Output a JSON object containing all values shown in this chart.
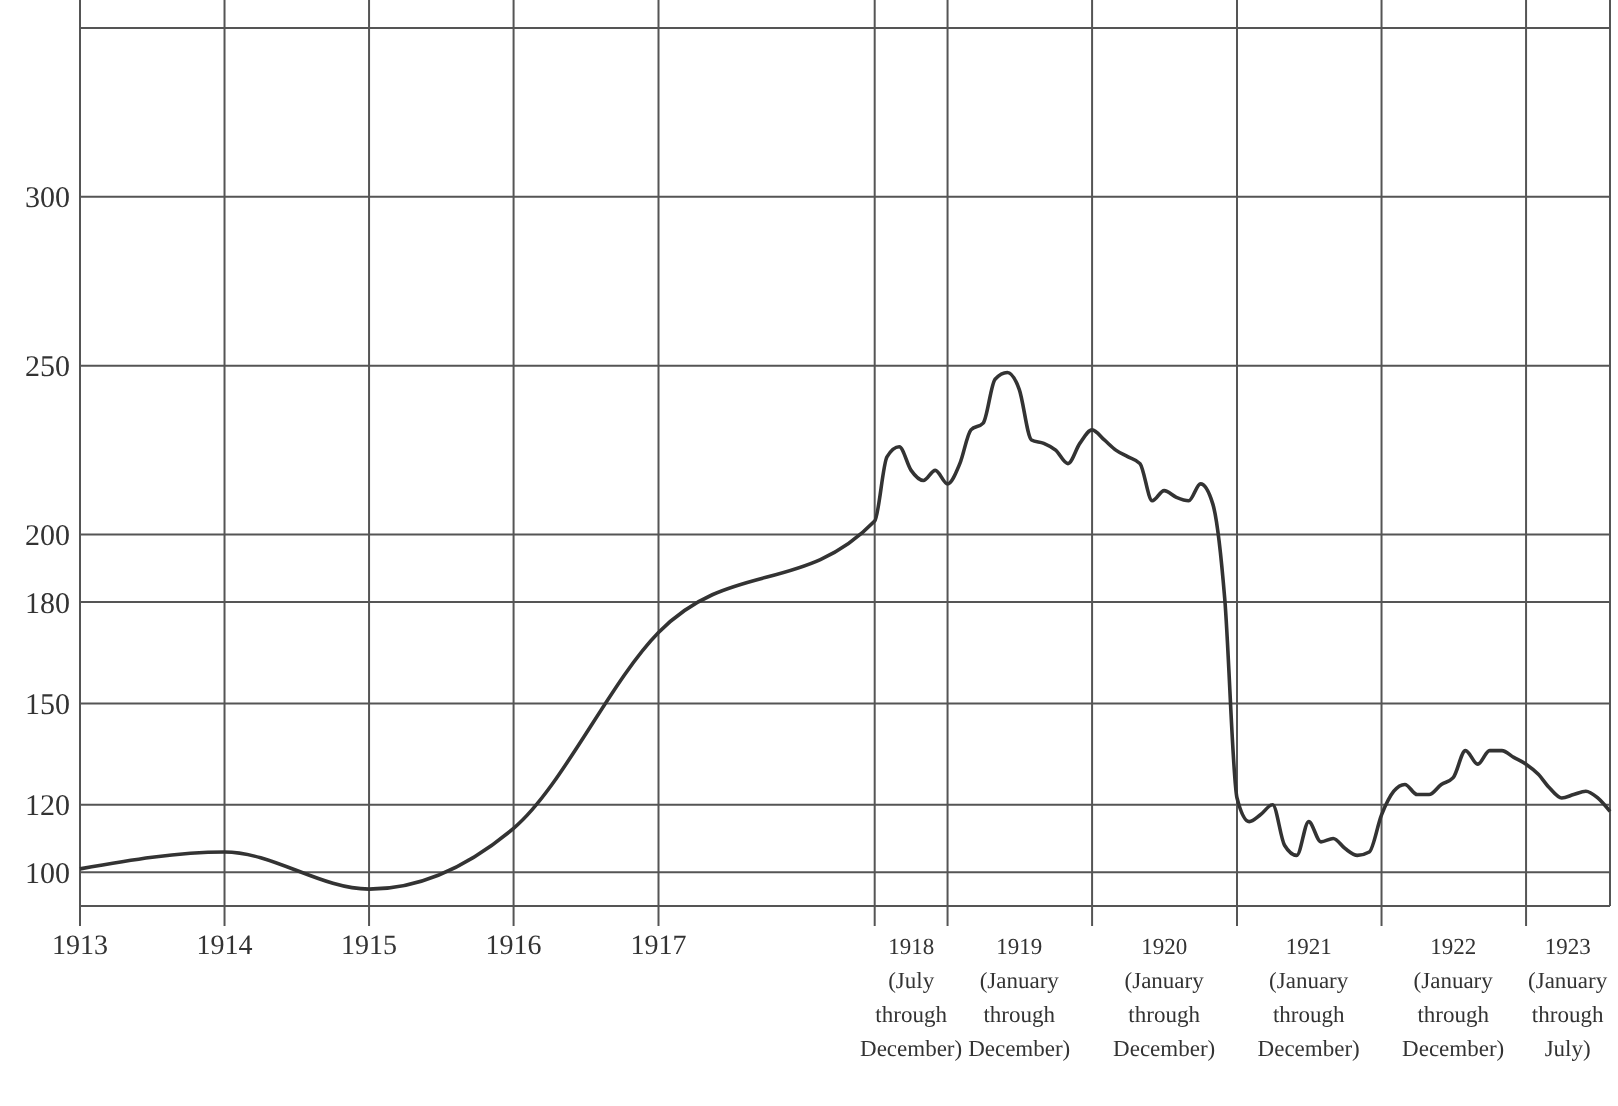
{
  "chart_data": {
    "type": "line",
    "x": [
      "1913",
      "1914",
      "1915",
      "1916",
      "1917",
      "1918-07",
      "1918-08",
      "1918-09",
      "1918-10",
      "1918-11",
      "1918-12",
      "1919-01",
      "1919-02",
      "1919-03",
      "1919-04",
      "1919-05",
      "1919-06",
      "1919-07",
      "1919-08",
      "1919-09",
      "1919-10",
      "1919-11",
      "1919-12",
      "1920-01",
      "1920-02",
      "1920-03",
      "1920-04",
      "1920-05",
      "1920-06",
      "1920-07",
      "1920-08",
      "1920-09",
      "1920-10",
      "1920-11",
      "1920-12",
      "1921-01",
      "1921-02",
      "1921-03",
      "1921-04",
      "1921-05",
      "1921-06",
      "1921-07",
      "1921-08",
      "1921-09",
      "1921-10",
      "1921-11",
      "1921-12",
      "1922-01",
      "1922-02",
      "1922-03",
      "1922-04",
      "1922-05",
      "1922-06",
      "1922-07",
      "1922-08",
      "1922-09",
      "1922-10",
      "1922-11",
      "1922-12",
      "1923-01",
      "1923-02",
      "1923-03",
      "1923-04",
      "1923-05",
      "1923-06",
      "1923-07",
      "1923-08"
    ],
    "series": [
      {
        "color": "#333333",
        "values": [
          101,
          106,
          95,
          113,
          171,
          204,
          223,
          226,
          219,
          216,
          219,
          215,
          221,
          231,
          233,
          246,
          248,
          243,
          228,
          227,
          225,
          221,
          227,
          231,
          228,
          225,
          223,
          221,
          210,
          213,
          211,
          210,
          215,
          209,
          181,
          122,
          115,
          117,
          120,
          108,
          105,
          115,
          109,
          110,
          107,
          105,
          106,
          117,
          124,
          126,
          123,
          123,
          126,
          128,
          136,
          132,
          136,
          136,
          134,
          132,
          129,
          125,
          122,
          123,
          124,
          122,
          118
        ]
      }
    ],
    "xlim": [
      "1913",
      "1923-08"
    ],
    "xticks": [
      {
        "value": "1913",
        "label": "1913"
      },
      {
        "value": "1914",
        "label": "1914"
      },
      {
        "value": "1915",
        "label": "1915"
      },
      {
        "value": "1916",
        "label": "1916"
      },
      {
        "value": "1917",
        "label": "1917"
      },
      {
        "value": "1918-07",
        "label": null
      },
      {
        "value": "1919",
        "label": null
      },
      {
        "value": "1920",
        "label": null
      },
      {
        "value": "1921",
        "label": null
      },
      {
        "value": "1922",
        "label": null
      },
      {
        "value": "1923",
        "label": null
      },
      {
        "value": "1918-10",
        "label": "1918\n(July\nthrough\nDecember)"
      },
      {
        "value": "1919-07",
        "label": "1919\n(January\nthrough\nDecember)"
      },
      {
        "value": "1920-07",
        "label": "1920\n(January\nthrough\nDecember)"
      },
      {
        "value": "1921-07",
        "label": "1921\n(January\nthrough\nDecember)"
      },
      {
        "value": "1922-07",
        "label": "1922\n(January\nthrough\nDecember)"
      },
      {
        "value": "1923-04-16",
        "label": "1923\n(January\nthrough\nJuly)"
      }
    ],
    "ylim": [
      90,
      350
    ],
    "yticks": [
      100,
      120,
      150,
      180,
      200,
      250,
      300
    ],
    "grid": true,
    "marker": "none",
    "line_style": "solid"
  }
}
